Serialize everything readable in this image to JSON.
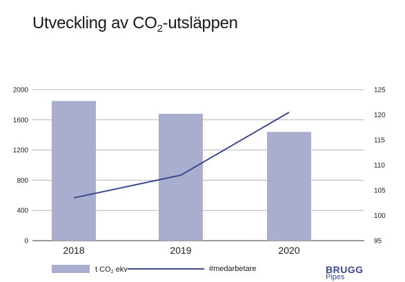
{
  "title": {
    "prefix": "Utveckling av CO",
    "subscript": "2",
    "suffix": "-utsläppen"
  },
  "chart_data": {
    "type": "bar",
    "categories": [
      "2018",
      "2019",
      "2020"
    ],
    "series": [
      {
        "type": "bar",
        "axis": "left",
        "values": [
          1850,
          1680,
          1440
        ],
        "color": "#a9aecf"
      },
      {
        "type": "line",
        "axis": "right",
        "values": [
          103.5,
          108,
          120.5
        ],
        "color": "#3c4a8c"
      }
    ],
    "ylim_left": [
      0,
      2000
    ],
    "yticks_left": [
      "0",
      "400",
      "800",
      "1200",
      "1600",
      "2000"
    ],
    "ylim_right": [
      95,
      125
    ],
    "yticks_right": [
      "95",
      "100",
      "105",
      "110",
      "115",
      "120",
      "125"
    ],
    "grid": true
  },
  "legend": {
    "bar_label_prefix": "t CO",
    "bar_label_sub": "2",
    "bar_label_suffix": " ekv",
    "line_label": "#medarbetare"
  },
  "logo": {
    "brand": "BRUGG",
    "sub": "Pipes"
  }
}
